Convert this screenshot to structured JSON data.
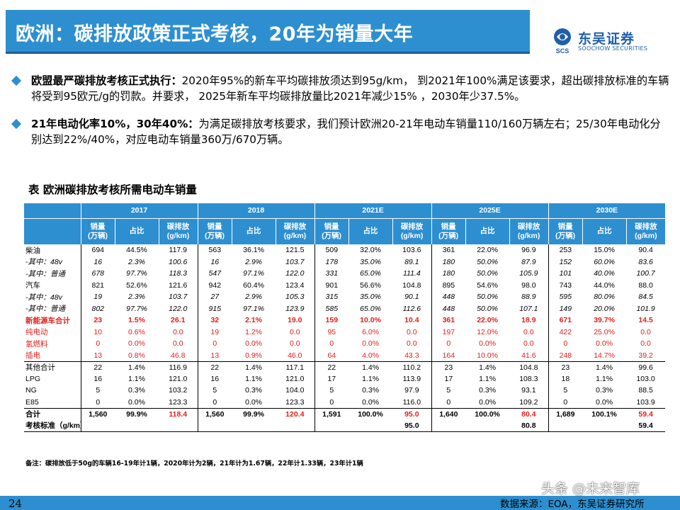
{
  "page": {
    "number": "24",
    "source": "数据来源：EOA，东吴证券研究所",
    "watermark": "头条 @未来智库"
  },
  "header": {
    "title": "欧洲：碳排放政策正式考核，20年为销量大年",
    "logo_cn": "东吴证券",
    "logo_en": "SOOCHOW SECURITIES",
    "logo_mark_text": "SCS"
  },
  "bullets": [
    {
      "bold": "欧盟最严碳排放考核正式执行：",
      "text": "2020年95%的新车平均碳排放须达到95g/km， 到2021年100%满足该要求，超出碳排放标准的车辆将受到95欧元/g的罚款。并要求， 2025年新车平均碳排放量比2021年减少15% ，2030年少37.5%。"
    },
    {
      "bold": "21年电动化率10%，30年40%：",
      "text": "为满足碳排放考核要求，我们预计欧洲20-21年电动车销量110/160万辆左右；25/30年电动化分别达到22%/40%，对应电动车销量360万/670万辆。"
    }
  ],
  "table": {
    "title": "表  欧洲碳排放考核所需电动车销量",
    "years": [
      "2017",
      "2018",
      "2021E",
      "2025E",
      "2030E"
    ],
    "sub_headers": [
      "销量\n(万辆)",
      "占比",
      "碳排放\n(g/km)"
    ],
    "rows": [
      {
        "label": "柴油",
        "style": "normal",
        "cells": [
          "694",
          "44.5%",
          "117.9",
          "563",
          "36.1%",
          "121.5",
          "509",
          "32.0%",
          "103.6",
          "361",
          "22.0%",
          "96.9",
          "253",
          "15.0%",
          "90.4"
        ]
      },
      {
        "label": "-其中：48v",
        "style": "italic",
        "cells": [
          "16",
          "2.3%",
          "100.6",
          "16",
          "2.9%",
          "103.7",
          "178",
          "35.0%",
          "89.1",
          "180",
          "50.0%",
          "87.9",
          "152",
          "60.0%",
          "83.6"
        ]
      },
      {
        "label": "-其中：普通",
        "style": "italic",
        "cells": [
          "678",
          "97.7%",
          "118.3",
          "547",
          "97.1%",
          "122.0",
          "331",
          "65.0%",
          "111.4",
          "180",
          "50.0%",
          "105.9",
          "101",
          "40.0%",
          "100.7"
        ]
      },
      {
        "label": "汽车",
        "style": "normal",
        "cells": [
          "821",
          "52.6%",
          "121.6",
          "942",
          "60.4%",
          "123.4",
          "901",
          "56.6%",
          "104.8",
          "895",
          "54.6%",
          "98.0",
          "743",
          "44.0%",
          "88.0"
        ]
      },
      {
        "label": "-其中：48v",
        "style": "italic",
        "cells": [
          "19",
          "2.3%",
          "103.7",
          "27",
          "2.9%",
          "105.3",
          "315",
          "35.0%",
          "90.1",
          "448",
          "50.0%",
          "88.9",
          "595",
          "80.0%",
          "84.5"
        ]
      },
      {
        "label": "-其中：普通",
        "style": "italic",
        "cells": [
          "802",
          "97.7%",
          "122.0",
          "915",
          "97.1%",
          "123.9",
          "585",
          "65.0%",
          "112.6",
          "448",
          "50.0%",
          "107.1",
          "149",
          "20.0%",
          "101.9"
        ]
      },
      {
        "label": "新能源车合计",
        "style": "redbold",
        "cells": [
          "23",
          "1.5%",
          "26.1",
          "32",
          "2.1%",
          "19.0",
          "159",
          "10.0%",
          "10.4",
          "361",
          "22.0%",
          "18.9",
          "671",
          "39.7%",
          "14.5"
        ]
      },
      {
        "label": "纯电动",
        "style": "red",
        "cells": [
          "10",
          "0.6%",
          "0.0",
          "19",
          "1.2%",
          "0.0",
          "95",
          "6.0%",
          "0.0",
          "197",
          "12.0%",
          "0.0",
          "422",
          "25.0%",
          "0.0"
        ]
      },
      {
        "label": "氢燃料",
        "style": "red",
        "cells": [
          "0",
          "0.0%",
          "0.0",
          "0",
          "0.0%",
          "0.0",
          "0",
          "0.0%",
          "0.0",
          "0",
          "0.0%",
          "0.0",
          "0",
          "0.0%",
          "0.0"
        ]
      },
      {
        "label": "插电",
        "style": "red",
        "cells": [
          "13",
          "0.8%",
          "46.8",
          "13",
          "0.9%",
          "46.0",
          "64",
          "4.0%",
          "43.3",
          "164",
          "10.0%",
          "41.6",
          "248",
          "14.7%",
          "39.2"
        ]
      },
      {
        "label": "其他合计",
        "style": "bline",
        "cells": [
          "22",
          "1.4%",
          "116.9",
          "22",
          "1.4%",
          "117.1",
          "22",
          "1.4%",
          "110.2",
          "23",
          "1.4%",
          "104.8",
          "23",
          "1.4%",
          "99.6"
        ]
      },
      {
        "label": "LPG",
        "style": "normal",
        "cells": [
          "16",
          "1.1%",
          "121.0",
          "16",
          "1.1%",
          "121.0",
          "17",
          "1.1%",
          "113.9",
          "17",
          "1.1%",
          "108.3",
          "18",
          "1.1%",
          "103.0"
        ]
      },
      {
        "label": "NG",
        "style": "normal",
        "cells": [
          "5",
          "0.3%",
          "103.2",
          "5",
          "0.3%",
          "104.0",
          "5",
          "0.3%",
          "97.9",
          "5",
          "0.3%",
          "93.1",
          "5",
          "0.3%",
          "88.5"
        ]
      },
      {
        "label": "E85",
        "style": "normal",
        "cells": [
          "0",
          "0.0%",
          "123.3",
          "0",
          "0.0%",
          "123.3",
          "0",
          "0.0%",
          "116.0",
          "0",
          "0.0%",
          "109.2",
          "0",
          "0.0%",
          "103.9"
        ]
      },
      {
        "label": "合计",
        "style": "total",
        "cells": [
          "1,560",
          "99.9%",
          "118.4",
          "1,560",
          "99.9%",
          "120.4",
          "1,591",
          "100.0%",
          "95.0",
          "1,640",
          "100.0%",
          "80.4",
          "1,689",
          "100.1%",
          "59.4"
        ]
      },
      {
        "label": "考核标准（g/km）",
        "style": "standard",
        "cells": [
          "",
          "",
          "",
          "",
          "",
          "",
          "",
          "",
          "95.0",
          "",
          "",
          "80.8",
          "",
          "",
          "59.4"
        ]
      }
    ],
    "note": "备注：碳排放低于50g的车辆16-19年计1辆，2020年计为2辆，21年计为1.67辆，22年计1.33辆，23年计1辆"
  },
  "colors": {
    "accent": "#2d8fd0",
    "highlight_red": "#e0201b",
    "logo_blue": "#1f5fa8"
  }
}
